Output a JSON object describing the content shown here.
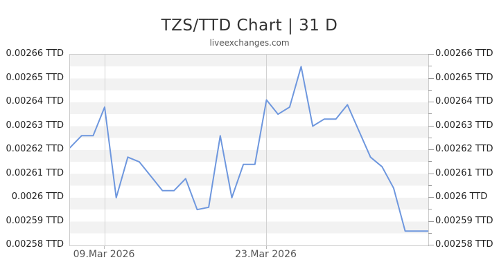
{
  "header": {
    "title": "TZS/TTD Chart | 31 D",
    "subtitle": "liveexchanges.com"
  },
  "chart_data": {
    "type": "line",
    "title": "TZS/TTD Chart | 31 D",
    "subtitle": "liveexchanges.com",
    "pair": "TZS/TTD",
    "range_label": "31 D",
    "unit": "TTD",
    "n_points": 32,
    "values": [
      0.002621,
      0.002626,
      0.002626,
      0.002638,
      0.0026,
      0.002617,
      0.002615,
      0.002609,
      0.002603,
      0.002603,
      0.002608,
      0.002595,
      0.002596,
      0.002626,
      0.0026,
      0.002614,
      0.002614,
      0.002641,
      0.002635,
      0.002638,
      0.002655,
      0.00263,
      0.002633,
      0.002633,
      0.002639,
      0.002628,
      0.002617,
      0.002613,
      0.002604,
      0.002586,
      0.002586,
      0.002586
    ],
    "ylim": [
      0.00258,
      0.00266
    ],
    "y_tick_interval": 1e-05,
    "y_tick_labels": [
      "0.00266 TTD",
      "0.00265 TTD",
      "0.00264 TTD",
      "0.00263 TTD",
      "0.00262 TTD",
      "0.00261 TTD",
      "0.0026 TTD",
      "0.00259 TTD",
      "0.00258 TTD"
    ],
    "x_ticks": [
      {
        "day_index": 3,
        "label": "09.Mar 2026"
      },
      {
        "day_index": 17,
        "label": "23.Mar 2026"
      }
    ],
    "legend": "none",
    "grid": {
      "vertical_gridlines_at_x_ticks": true,
      "alternating_horizontal_bands": true,
      "minor_ticks_right_axis": true
    },
    "colors": {
      "series_line": "#6e97de",
      "band_gray": "#f2f2f2",
      "plot_border": "#cccccc",
      "gridline": "#d2d2d2",
      "tick": "#999999",
      "title_text": "#333333",
      "subtitle_text": "#555555",
      "y_label_text": "#222222",
      "x_label_text": "#555555",
      "background": "#ffffff"
    }
  }
}
